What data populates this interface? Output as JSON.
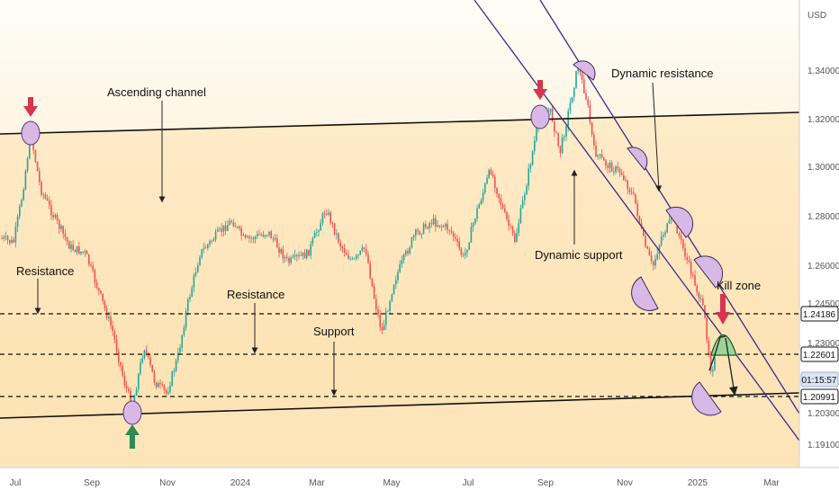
{
  "chart_data": {
    "type": "candlestick",
    "currency": "USD",
    "x_ticks": [
      "Jul",
      "Sep",
      "Nov",
      "2024",
      "Mar",
      "May",
      "Jul",
      "Sep",
      "Nov",
      "2025",
      "Mar"
    ],
    "y_ticks": [
      "1.34000",
      "1.32000",
      "1.30000",
      "1.28000",
      "1.26000",
      "1.24500",
      "1.23000",
      "1.20300",
      "1.19100"
    ],
    "price_tags": [
      {
        "label": "1.24186",
        "style": "white"
      },
      {
        "label": "1.22601",
        "style": "white"
      },
      {
        "label": "01:15:57",
        "style": "blue"
      },
      {
        "label": "1.20991",
        "style": "white"
      }
    ],
    "annotations": {
      "ascending_channel": "Ascending channel",
      "resistance_left": "Resistance",
      "resistance_mid": "Resistance",
      "support": "Support",
      "dynamic_resistance": "Dynamic resistance",
      "dynamic_support": "Dynamic support",
      "kill_zone": "Kill zone"
    },
    "levels": [
      1.24186,
      1.22601,
      1.20991
    ],
    "colors": {
      "up": "#26a69a",
      "down": "#ef5350",
      "channel_fill": "#fde9c4",
      "dynamic_lines": "#3f2a8c",
      "marker_fill": "#d9b8e6",
      "arrow_red": "#d6344f",
      "arrow_green": "#2e8b57",
      "kill_zone_fill": "#9ed49a"
    }
  }
}
